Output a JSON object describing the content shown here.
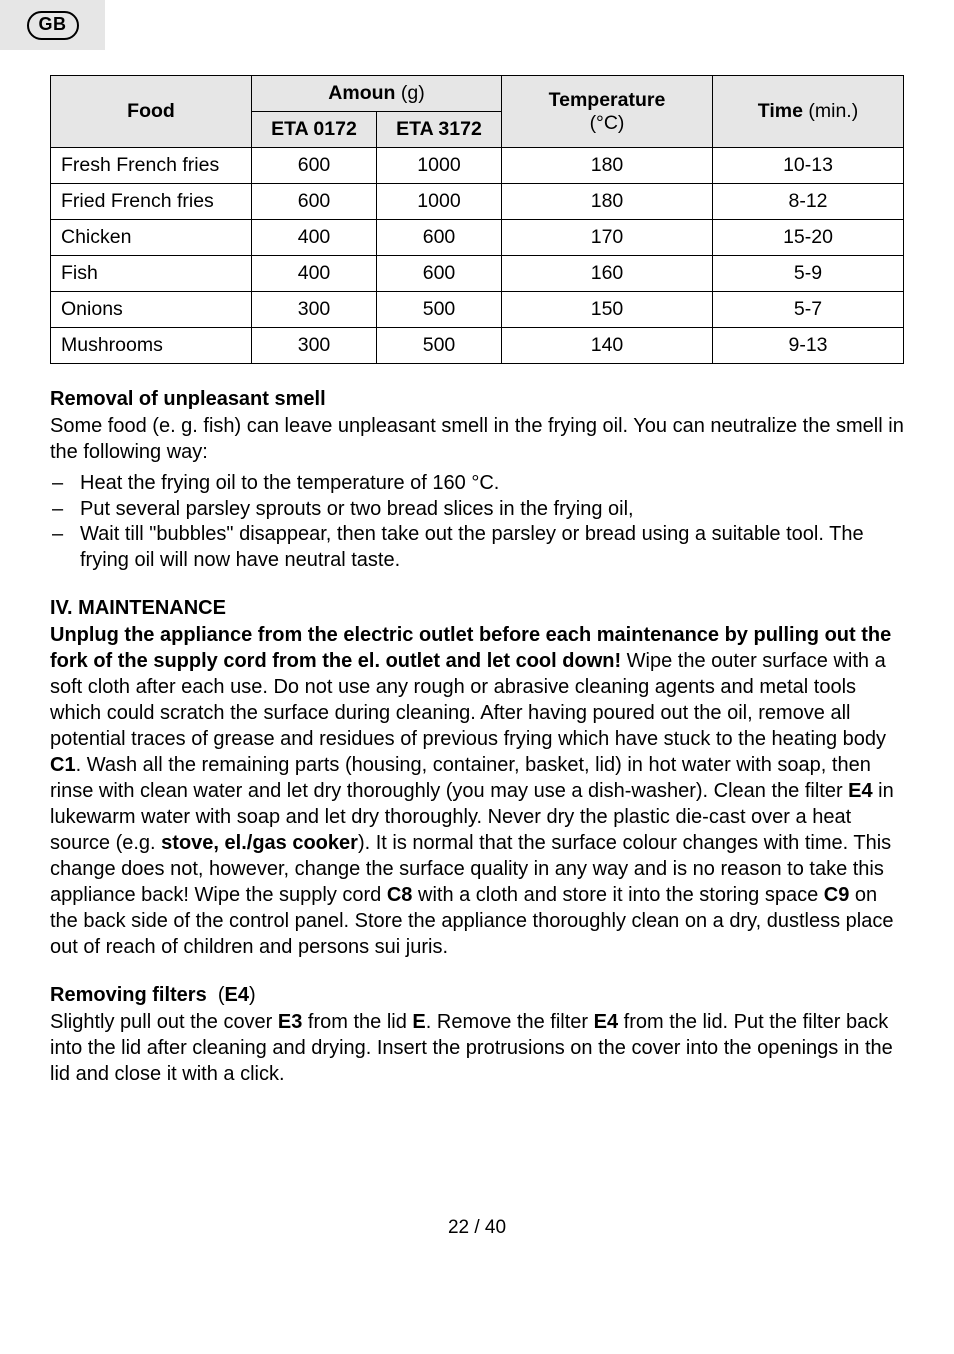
{
  "badge": {
    "label": "GB"
  },
  "table": {
    "headers": {
      "food": "Food",
      "amount_label": "Amoun",
      "amount_unit": "(g)",
      "temp_label": "Temperature",
      "temp_unit": "(°C)",
      "time_label": "Time",
      "time_unit": "(min.)",
      "model_a": "ETA 0172",
      "model_b": "ETA 3172"
    },
    "rows": [
      {
        "food": "Fresh French fries",
        "a": "600",
        "b": "1000",
        "temp": "180",
        "time": "10-13"
      },
      {
        "food": "Fried French fries",
        "a": "600",
        "b": "1000",
        "temp": "180",
        "time": "8-12"
      },
      {
        "food": "Chicken",
        "a": "400",
        "b": "600",
        "temp": "170",
        "time": "15-20"
      },
      {
        "food": "Fish",
        "a": "400",
        "b": "600",
        "temp": "160",
        "time": "5-9"
      },
      {
        "food": "Onions",
        "a": "300",
        "b": "500",
        "temp": "150",
        "time": "5-7"
      },
      {
        "food": "Mushrooms",
        "a": "300",
        "b": "500",
        "temp": "140",
        "time": "9-13"
      }
    ]
  },
  "sections": {
    "removal": {
      "title": "Removal of unpleasant smell",
      "intro": "Some food (e. g. fish) can leave unpleasant smell in the frying oil. You can neutralize the smell in the following way:",
      "items": [
        "Heat the frying oil to the temperature of 160 °C.",
        "Put several parsley sprouts or two bread slices in the frying oil,",
        "Wait till \"bubbles\" disappear, then take out the parsley or bread using a suitable tool. The frying oil will now have neutral taste."
      ]
    },
    "maintenance": {
      "title": "IV. MAINTENANCE",
      "bold_lead": "Unplug the appliance from the electric outlet before each maintenance by pulling out the fork of the supply cord from the el. outlet and let cool down!",
      "body_parts": {
        "p1": " Wipe the outer surface with a soft cloth after each use. Do not use any rough or abrasive cleaning agents and metal tools which could scratch the surface during cleaning. After having poured out the oil, remove all potential traces of grease and residues of previous frying which have stuck to the heating body ",
        "c1": "C1",
        "p2": ". Wash all the remaining parts (housing, container, basket, lid) in hot water with soap, then rinse with clean water and let dry thoroughly (you may use a dish-washer). Clean the filter ",
        "e4a": "E4",
        "p3": " in lukewarm water with soap and let dry thoroughly. Never dry the plastic die-cast over a heat source (e.g. ",
        "stove": "stove, el./gas cooker",
        "p4": "). It is normal that the surface colour changes with time. This change does not, however, change the surface quality in any way and is no reason to take this appliance back! Wipe the supply cord ",
        "c8": "C8",
        "p5": " with a cloth and store it into the storing space ",
        "c9": "C9",
        "p6": " on the back side of the control panel. Store the appliance thoroughly clean on a dry, dustless place out of reach of children and persons sui juris."
      }
    },
    "filters": {
      "title_pre": "Removing filters",
      "title_paren": "(",
      "title_bold": "E4",
      "title_close": ")",
      "body": {
        "p1": "Slightly pull out the cover ",
        "e3": "E3",
        "p2": " from the lid ",
        "e": "E",
        "p3": ". Remove the filter ",
        "e4b": "E4",
        "p4": " from the lid. Put the filter back into the lid after cleaning and drying. Insert the protrusions on the cover into the openings in the lid and close it with a click."
      }
    }
  },
  "footer": {
    "page": "22 / 40"
  }
}
